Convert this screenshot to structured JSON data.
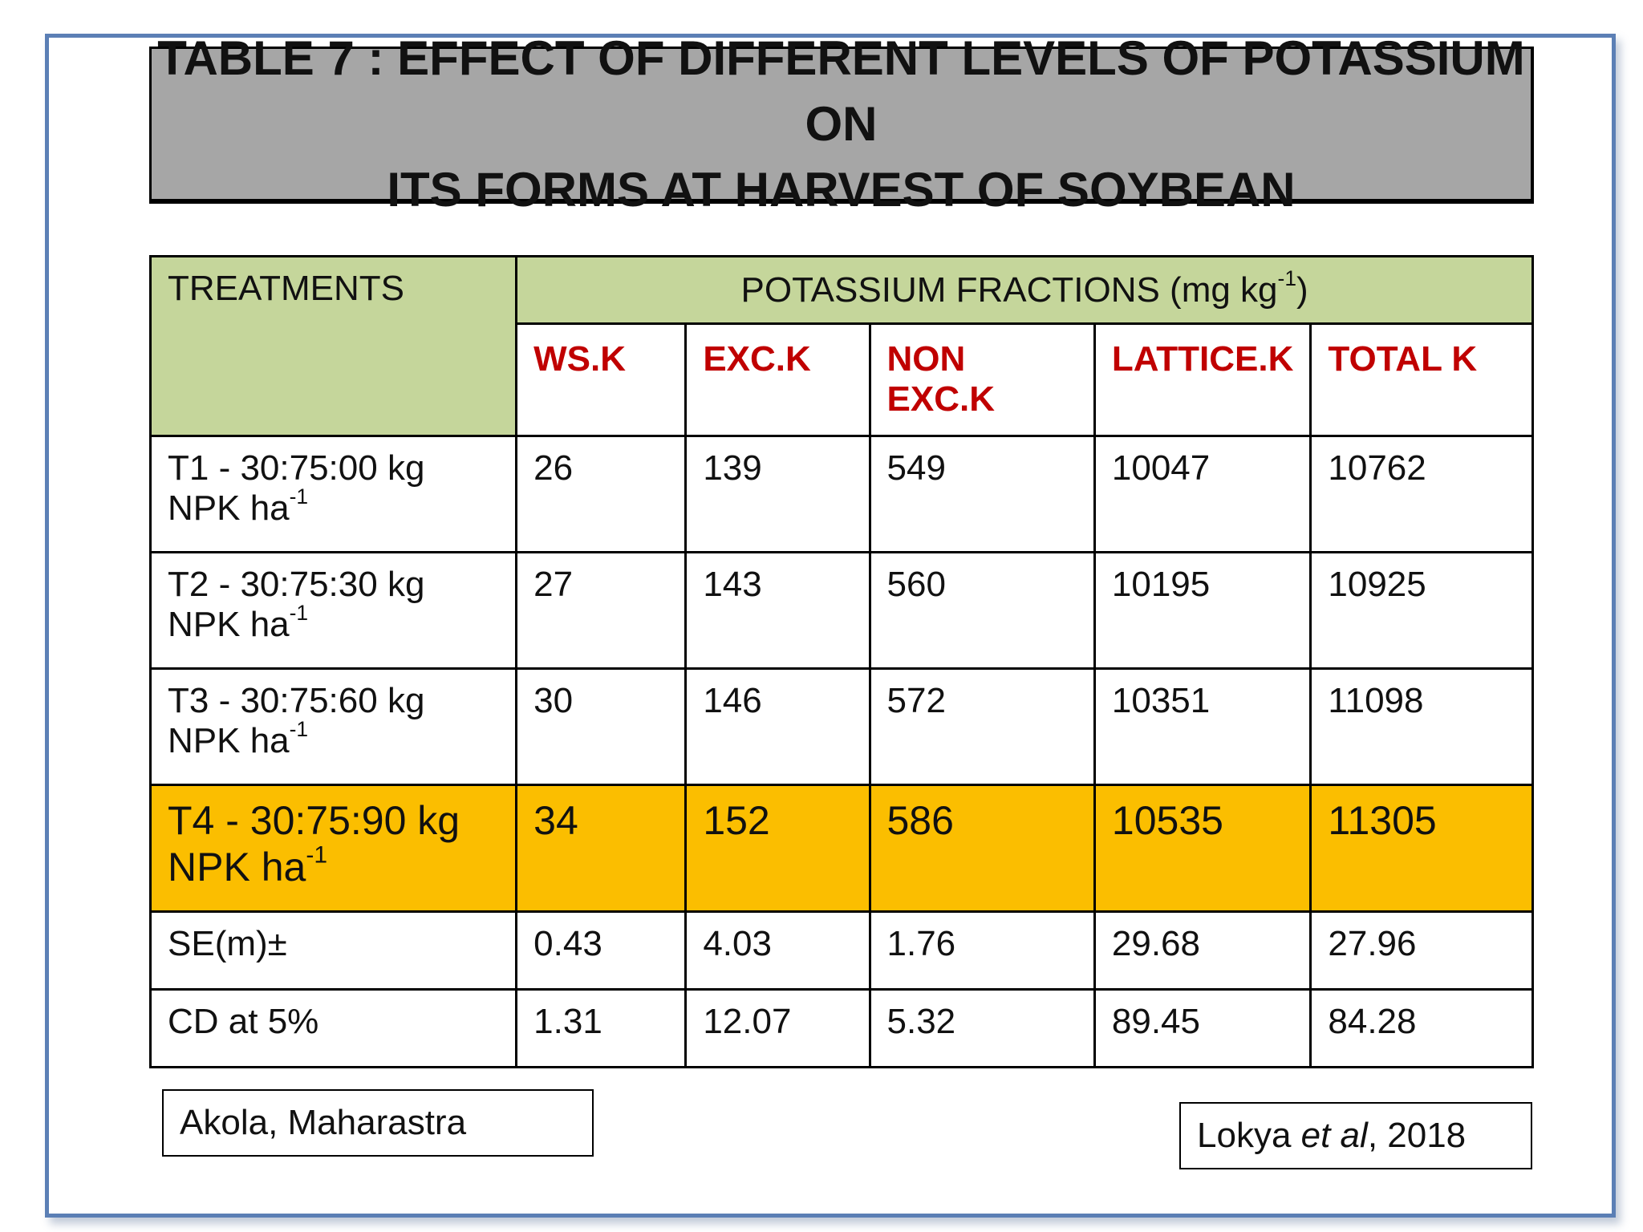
{
  "title": {
    "line1": "TABLE 7 : EFFECT OF DIFFERENT LEVELS OF POTASSIUM ON",
    "line2": "ITS FORMS AT HARVEST OF SOYBEAN"
  },
  "table": {
    "treatments_header": "TREATMENTS",
    "fractions_header": "POTASSIUM  FRACTIONS (mg kg",
    "fractions_header_sup": "-1",
    "fractions_header_close": ")",
    "columns": [
      "WS.K",
      "EXC.K",
      "NON EXC.K",
      "LATTICE.K",
      "TOTAL K"
    ],
    "rows": [
      {
        "line1": "T1 - 30:75:00 kg",
        "line2": "NPK ha",
        "sup": "-1",
        "values": [
          "26",
          "139",
          "549",
          "10047",
          "10762"
        ]
      },
      {
        "line1": "T2 - 30:75:30 kg",
        "line2": "NPK ha",
        "sup": "-1",
        "values": [
          "27",
          "143",
          "560",
          "10195",
          "10925"
        ]
      },
      {
        "line1": "T3 - 30:75:60 kg",
        "line2": "NPK ha",
        "sup": "-1",
        "values": [
          "30",
          "146",
          "572",
          "10351",
          "11098"
        ]
      },
      {
        "line1": "T4 - 30:75:90 kg",
        "line2": "NPK ha",
        "sup": "-1",
        "values": [
          "34",
          "152",
          "586",
          "10535",
          "11305"
        ]
      }
    ],
    "stats": [
      {
        "label": "SE(m)±",
        "values": [
          "0.43",
          "4.03",
          "1.76",
          "29.68",
          "27.96"
        ]
      },
      {
        "label": "CD at 5%",
        "values": [
          "1.31",
          "12.07",
          "5.32",
          "89.45",
          "84.28"
        ]
      }
    ]
  },
  "footer": {
    "location": "Akola, Maharastra",
    "citation_author": "Lokya ",
    "citation_etal": "et al",
    "citation_year": ", 2018"
  },
  "colors": {
    "header_green": "#c5d69b",
    "highlight_gold": "#fbbe00",
    "column_header_red": "#c00000",
    "title_gray": "#a6a6a6",
    "frame_blue": "#5b7fb5"
  }
}
